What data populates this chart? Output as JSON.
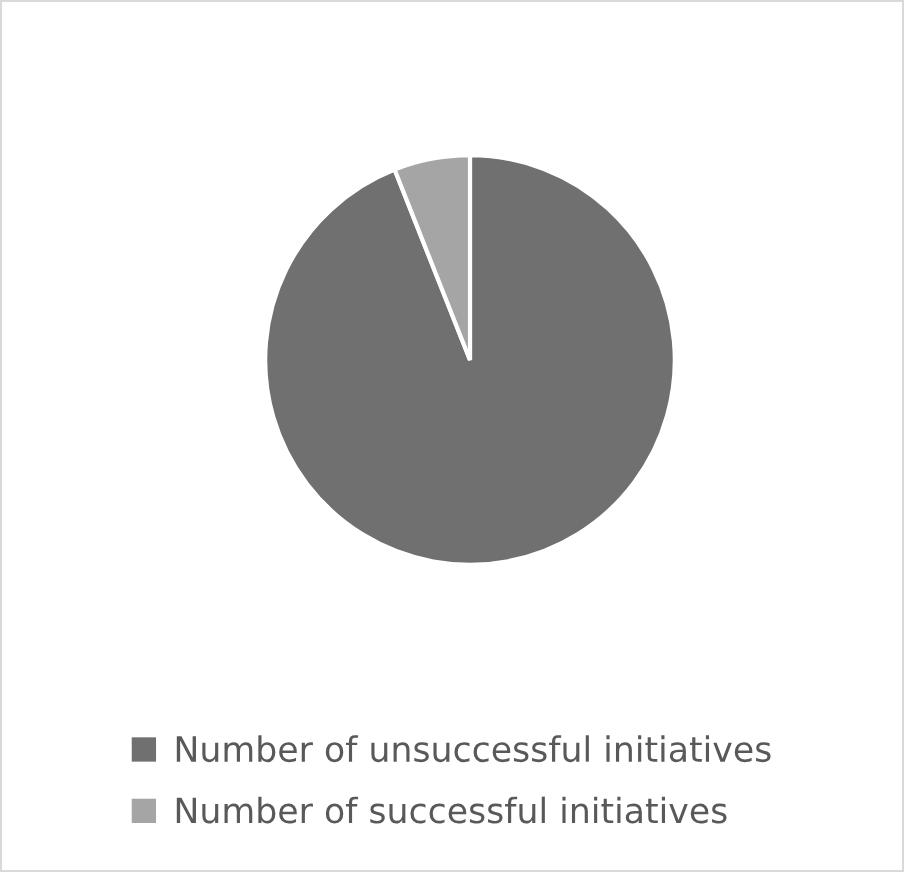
{
  "chart_data": {
    "type": "pie",
    "categories": [
      "Number of unsuccessful initiatives",
      "Number of successful initiatives"
    ],
    "values": [
      94,
      6
    ],
    "colors": [
      "#707070",
      "#a5a5a5"
    ],
    "legend": "bottom"
  }
}
